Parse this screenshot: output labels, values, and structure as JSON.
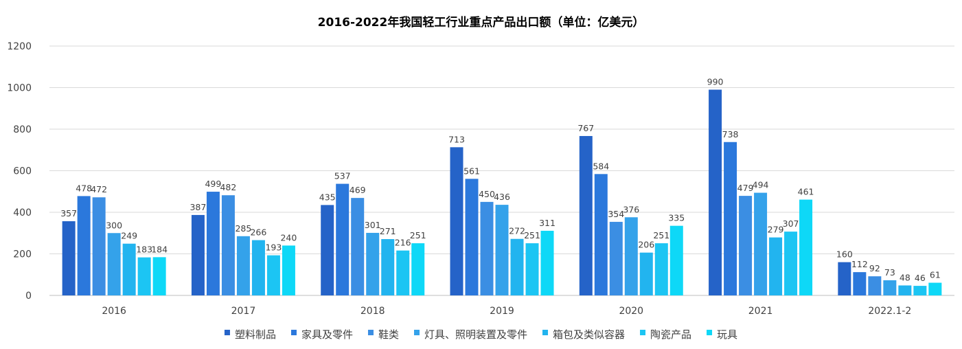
{
  "chart_data": {
    "type": "bar",
    "title": "2016-2022年我国轻工行业重点产品出口额（单位：亿美元）",
    "categories": [
      "2016",
      "2017",
      "2018",
      "2019",
      "2020",
      "2021",
      "2022.1-2"
    ],
    "ylim": [
      0,
      1200
    ],
    "yticks": [
      0,
      200,
      400,
      600,
      800,
      1000,
      1200
    ],
    "grid": true,
    "legend_position": "bottom",
    "series": [
      {
        "name": "塑料制品",
        "color": "#2563c8",
        "values": [
          357,
          387,
          435,
          713,
          767,
          990,
          160
        ]
      },
      {
        "name": "家具及零件",
        "color": "#2b78dc",
        "values": [
          478,
          499,
          537,
          561,
          584,
          738,
          112
        ]
      },
      {
        "name": "鞋类",
        "color": "#3b8ee3",
        "values": [
          472,
          482,
          469,
          450,
          354,
          479,
          92
        ]
      },
      {
        "name": "灯具、照明装置及零件",
        "color": "#34a2ea",
        "values": [
          300,
          285,
          301,
          436,
          376,
          494,
          73
        ]
      },
      {
        "name": "箱包及类似容器",
        "color": "#22b4ef",
        "values": [
          249,
          266,
          271,
          272,
          206,
          279,
          48
        ]
      },
      {
        "name": "陶瓷产品",
        "color": "#1cc5f3",
        "values": [
          183,
          193,
          216,
          251,
          251,
          307,
          46
        ]
      },
      {
        "name": "玩具",
        "color": "#0ed8f7",
        "values": [
          184,
          240,
          251,
          311,
          335,
          461,
          61
        ]
      }
    ]
  }
}
